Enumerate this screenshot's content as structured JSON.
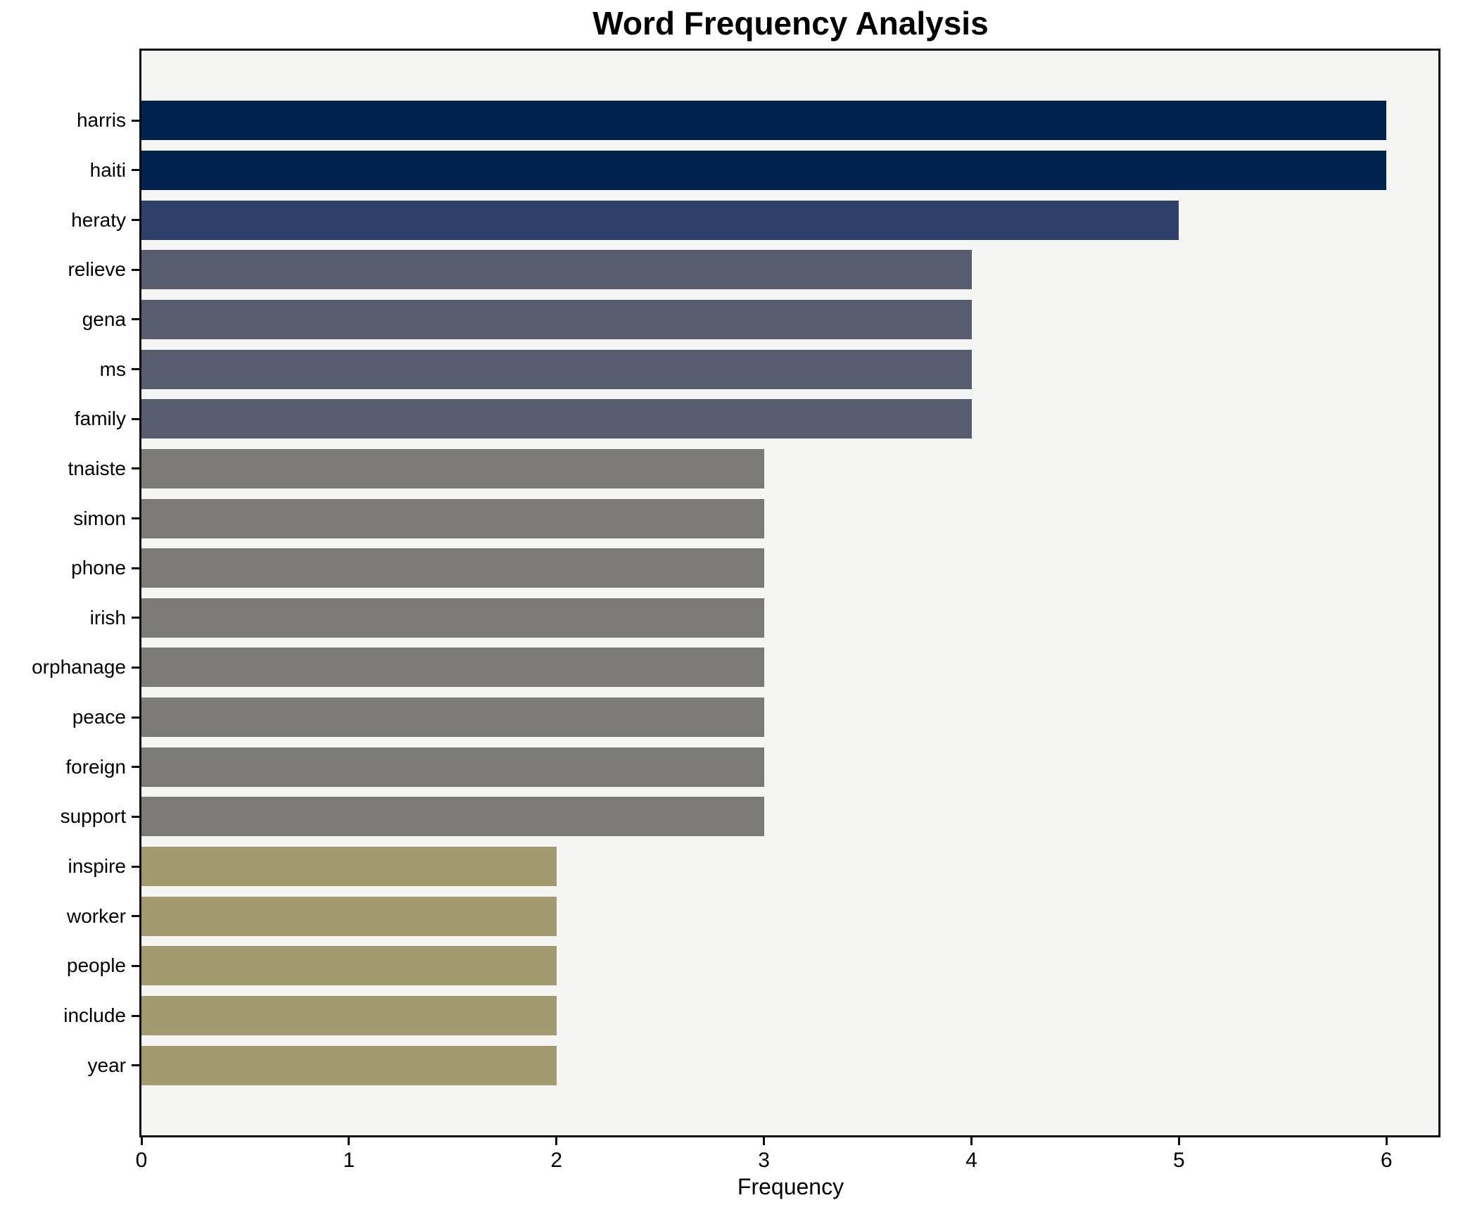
{
  "title": "Word Frequency Analysis",
  "chart_data": {
    "type": "bar",
    "orientation": "horizontal",
    "title": "Word Frequency Analysis",
    "xlabel": "Frequency",
    "categories": [
      "harris",
      "haiti",
      "heraty",
      "relieve",
      "gena",
      "ms",
      "family",
      "tnaiste",
      "simon",
      "phone",
      "irish",
      "orphanage",
      "peace",
      "foreign",
      "support",
      "inspire",
      "worker",
      "people",
      "include",
      "year"
    ],
    "values": [
      6,
      6,
      5,
      4,
      4,
      4,
      4,
      3,
      3,
      3,
      3,
      3,
      3,
      3,
      3,
      2,
      2,
      2,
      2,
      2
    ],
    "bar_colors": [
      "#00224e",
      "#00224e",
      "#2e406c",
      "#575d6e",
      "#575d6e",
      "#575d6e",
      "#575d6e",
      "#7b7a76",
      "#7b7a76",
      "#7b7a76",
      "#7b7a76",
      "#7b7a76",
      "#7b7a76",
      "#7b7a76",
      "#7b7a76",
      "#a39a6f",
      "#a39a6f",
      "#a39a6f",
      "#a39a6f",
      "#a39a6f"
    ],
    "x_ticks": [
      0,
      1,
      2,
      3,
      4,
      5,
      6
    ],
    "xlim": [
      0,
      6.25
    ],
    "grid": false,
    "legend": "none",
    "plot_background": "#f5f5f4",
    "figure_background": "#ffffff",
    "spine_color": "#0d0d0d",
    "text_color": "#000000"
  }
}
